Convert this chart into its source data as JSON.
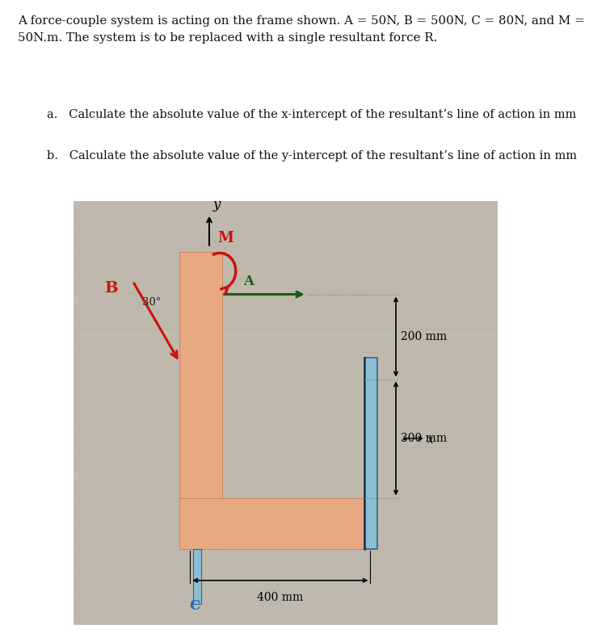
{
  "title_text": "A force-couple system is acting on the frame shown. A = 50N, B = 500N, C = 80N, and M =\n50N.m. The system is to be replaced with a single resultant force R.",
  "question_a": "a.   Calculate the absolute value of the x-intercept of the resultant’s line of action in mm",
  "question_b": "b.   Calculate the absolute value of the y-intercept of the resultant’s line of action in mm",
  "frame_color": "#e8a882",
  "blue_bar_color": "#8bbdd4",
  "white_bg": "#ffffff",
  "text_color_black": "#111111",
  "text_color_red": "#cc1111",
  "text_color_darkgreen": "#1a5c1a",
  "text_color_blue": "#2266bb",
  "diagram_bg": "#bfb9ad",
  "grid_line_color": "#aaa090"
}
